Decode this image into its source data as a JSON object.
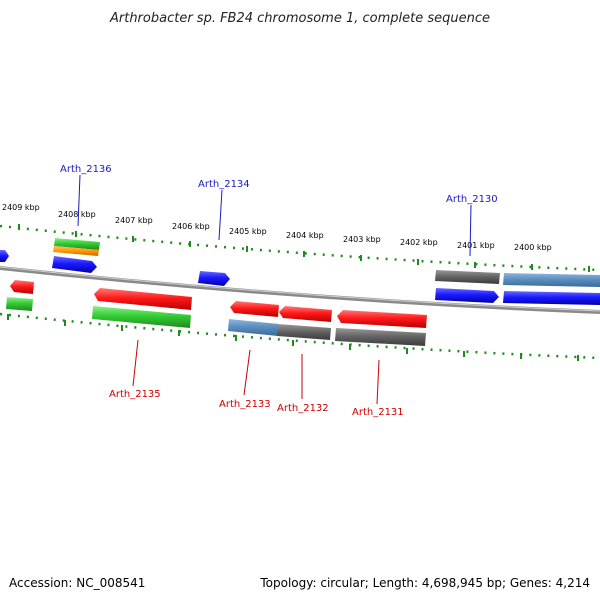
{
  "title": "Arthrobacter sp. FB24 chromosome 1, complete sequence",
  "accession": "Accession: NC_008541",
  "topology": "Topology: circular; Length: 4,698,945 bp; Genes: 4,214",
  "colors": {
    "plus_label": "#1a1ac8",
    "minus_label": "#cc0000",
    "tick": "#1f8a1f",
    "backbone": "#8a8a8a",
    "red": "#ff1a1a",
    "blue": "#1a1aff",
    "green": "#33cc33",
    "orange": "#ff9900",
    "grey": "#666666",
    "steel": "#5b8fc0"
  },
  "kbp_labels": [
    "2409 kbp",
    "2408 kbp",
    "2407 kbp",
    "2406 kbp",
    "2405 kbp",
    "2404 kbp",
    "2403 kbp",
    "2402 kbp",
    "2401 kbp",
    "2400 kbp"
  ],
  "gene_labels_top": [
    "Arth_2136",
    "Arth_2134",
    "Arth_2130"
  ],
  "gene_labels_bottom": [
    "Arth_2135",
    "Arth_2133",
    "Arth_2132",
    "Arth_2131"
  ]
}
